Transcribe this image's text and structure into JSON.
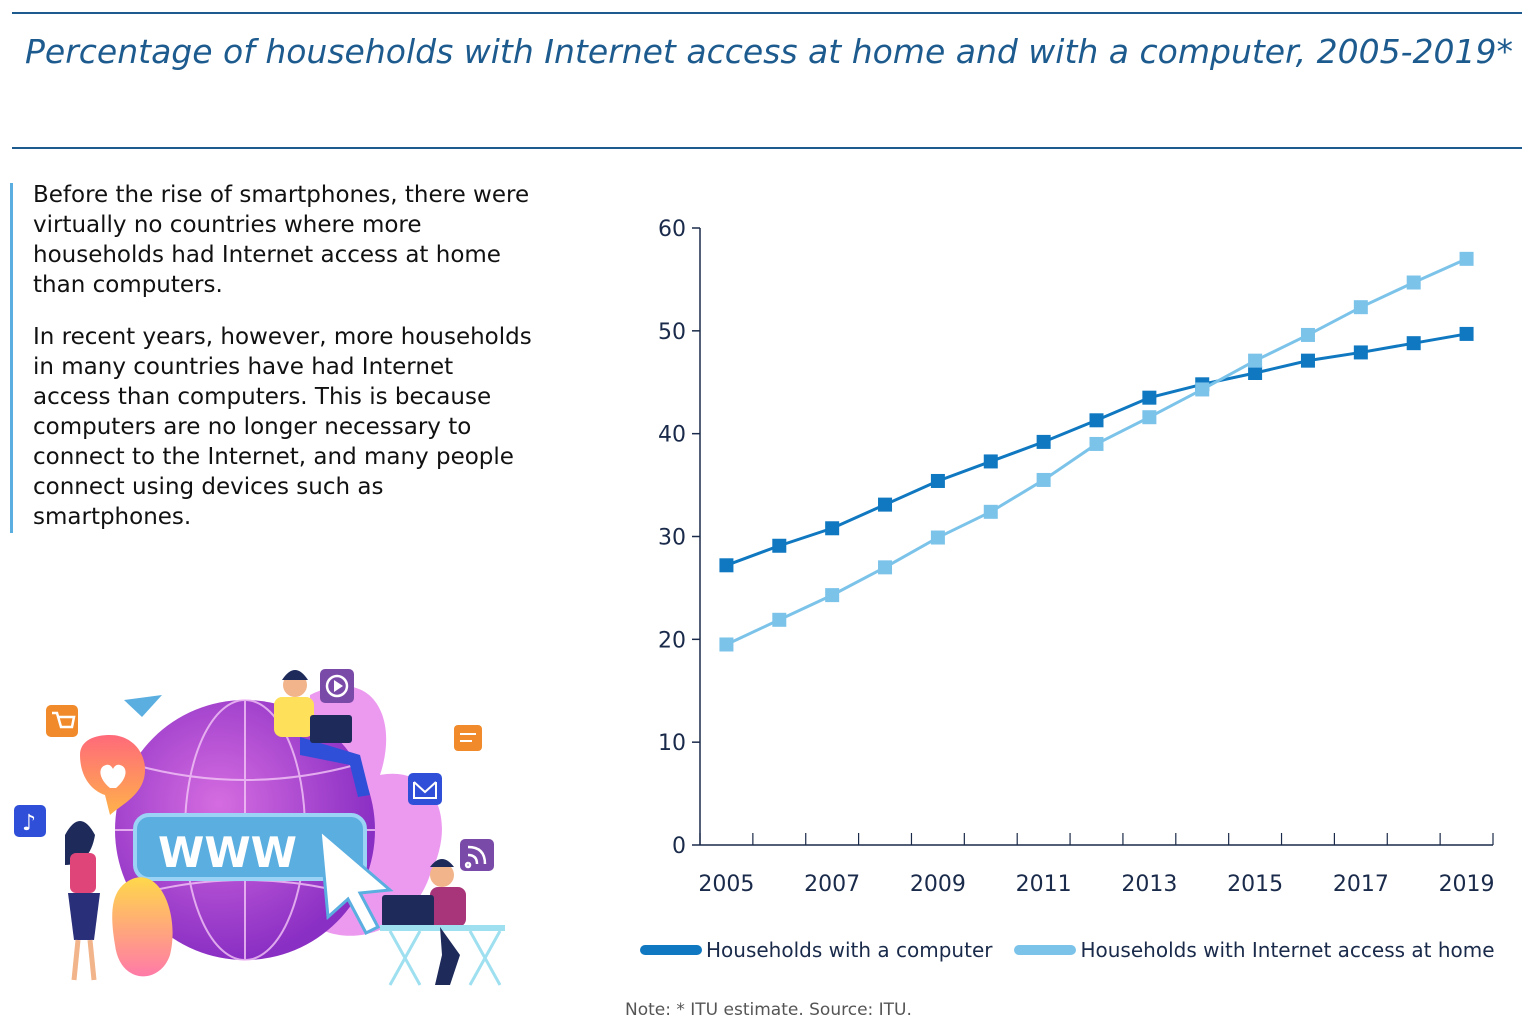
{
  "title": "Percentage of households with Internet access at home and with a computer, 2005-2019*",
  "paragraphs": [
    "Before the rise of smartphones, there were virtually no countries where more households had Internet access at home than computers.",
    "In recent years, however, more households in many countries have had Internet access than computers. This is because computers are no longer necessary to connect to the Internet, and many people connect using devices such as smartphones."
  ],
  "illustration": {
    "www_text": "WWW"
  },
  "note": "Note: * ITU estimate.    Source: ITU.",
  "colors": {
    "title": "#1d5b8f",
    "computer": "#0f78c0",
    "internet": "#7cc3ea",
    "accent_bar": "#5aaee0"
  },
  "chart_data": {
    "type": "line",
    "title": "Percentage of households with Internet access at home and with a computer, 2005-2019*",
    "x": [
      2005,
      2006,
      2007,
      2008,
      2009,
      2010,
      2011,
      2012,
      2013,
      2014,
      2015,
      2016,
      2017,
      2018,
      2019
    ],
    "x_tick_labels": [
      "2005",
      "2007",
      "2009",
      "2011",
      "2013",
      "2015",
      "2017",
      "2019"
    ],
    "y_tick_labels": [
      "0",
      "10",
      "20",
      "30",
      "40",
      "50",
      "60"
    ],
    "ylim": [
      0,
      60
    ],
    "grid": false,
    "legend_position": "bottom",
    "series": [
      {
        "name": "Households with a computer",
        "color": "#0f78c0",
        "values": [
          27.2,
          29.1,
          30.8,
          33.1,
          35.4,
          37.3,
          39.2,
          41.3,
          43.5,
          44.8,
          45.9,
          47.1,
          47.9,
          48.8,
          49.7
        ]
      },
      {
        "name": "Households with Internet access at home",
        "color": "#7cc3ea",
        "values": [
          19.5,
          21.9,
          24.3,
          27.0,
          29.9,
          32.4,
          35.5,
          39.0,
          41.6,
          44.3,
          47.1,
          49.6,
          52.3,
          54.7,
          57.0
        ]
      }
    ]
  }
}
